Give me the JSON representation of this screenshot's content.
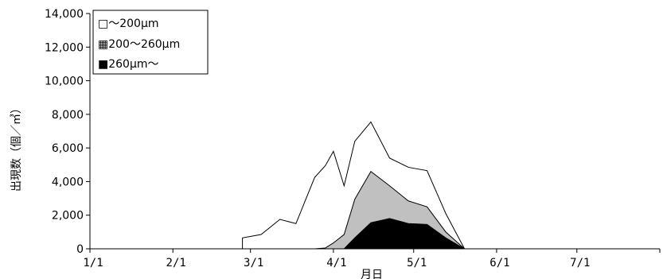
{
  "chart_data": {
    "type": "area",
    "xlabel": "月日",
    "ylabel": "出現数（個／㎥）",
    "ylim": [
      0,
      14000
    ],
    "yticks": [
      "0",
      "2,000",
      "4,000",
      "6,000",
      "8,000",
      "10,000",
      "12,000",
      "14,000"
    ],
    "xticks": [
      "1/1",
      "2/1",
      "3/1",
      "4/1",
      "5/1",
      "6/1",
      "7/1"
    ],
    "xtick_dates": [
      "01-01",
      "02-01",
      "03-01",
      "04-01",
      "05-01",
      "06-01",
      "07-01"
    ],
    "x_end": "08-01",
    "grid": false,
    "legend_position": "top-left",
    "x": [
      "02-27",
      "03-05",
      "03-12",
      "03-18",
      "03-25",
      "03-29",
      "04-01",
      "04-05",
      "04-09",
      "04-15",
      "04-22",
      "04-29",
      "05-06",
      "05-13",
      "05-20",
      "05-20"
    ],
    "series": [
      {
        "name": "□～200μm",
        "color": "#ffffff",
        "values": [
          650,
          850,
          1750,
          1500,
          4250,
          4950,
          5800,
          3750,
          6400,
          7550,
          5400,
          4850,
          4650,
          2100,
          0,
          0
        ]
      },
      {
        "name": "▦200～260μm",
        "color": "#c0c0c0",
        "values": [
          0,
          0,
          0,
          0,
          0,
          50,
          350,
          850,
          2950,
          4600,
          3750,
          2850,
          2500,
          1000,
          0,
          0
        ]
      },
      {
        "name": "■260μm～",
        "color": "#000000",
        "values": [
          0,
          0,
          0,
          0,
          0,
          0,
          0,
          0,
          650,
          1550,
          1800,
          1500,
          1450,
          650,
          0,
          0
        ]
      }
    ]
  }
}
